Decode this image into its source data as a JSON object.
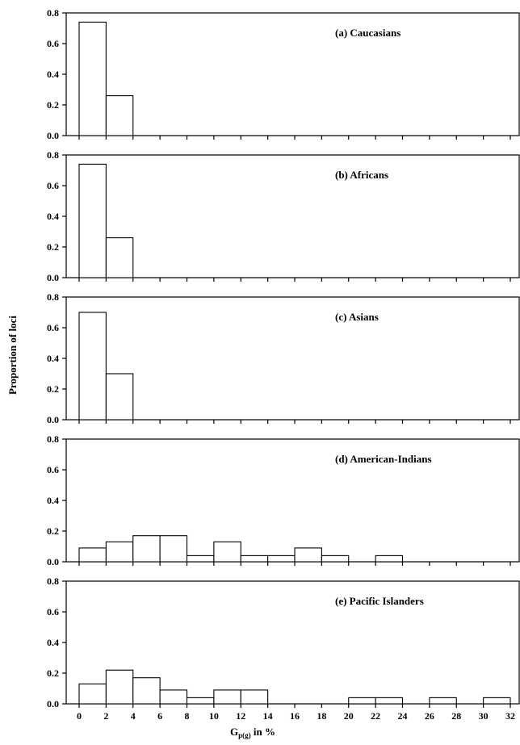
{
  "chart_data": {
    "type": "bar",
    "ylabel": "Proportion of loci",
    "xlabel": {
      "main": "G",
      "subscript": "p(g)",
      "suffix": " in %"
    },
    "bin_width": 2,
    "xlim": [
      0,
      32
    ],
    "ylim": [
      0,
      0.8
    ],
    "x_ticks": [
      0,
      2,
      4,
      6,
      8,
      10,
      12,
      14,
      16,
      18,
      20,
      22,
      24,
      26,
      28,
      30,
      32
    ],
    "y_ticks": [
      "0.0",
      "0.2",
      "0.4",
      "0.6",
      "0.8"
    ],
    "panels": [
      {
        "title": "(a) Caucasians",
        "bins": [
          {
            "x0": 0,
            "value": 0.74
          },
          {
            "x0": 2,
            "value": 0.26
          }
        ]
      },
      {
        "title": "(b) Africans",
        "bins": [
          {
            "x0": 0,
            "value": 0.74
          },
          {
            "x0": 2,
            "value": 0.26
          }
        ]
      },
      {
        "title": "(c) Asians",
        "bins": [
          {
            "x0": 0,
            "value": 0.7
          },
          {
            "x0": 2,
            "value": 0.3
          }
        ]
      },
      {
        "title": "(d) American-Indians",
        "bins": [
          {
            "x0": 0,
            "value": 0.09
          },
          {
            "x0": 2,
            "value": 0.13
          },
          {
            "x0": 4,
            "value": 0.17
          },
          {
            "x0": 6,
            "value": 0.17
          },
          {
            "x0": 8,
            "value": 0.04
          },
          {
            "x0": 10,
            "value": 0.13
          },
          {
            "x0": 12,
            "value": 0.04
          },
          {
            "x0": 14,
            "value": 0.04
          },
          {
            "x0": 16,
            "value": 0.09
          },
          {
            "x0": 18,
            "value": 0.04
          },
          {
            "x0": 22,
            "value": 0.04
          }
        ]
      },
      {
        "title": "(e) Pacific Islanders",
        "bins": [
          {
            "x0": 0,
            "value": 0.13
          },
          {
            "x0": 2,
            "value": 0.22
          },
          {
            "x0": 4,
            "value": 0.17
          },
          {
            "x0": 6,
            "value": 0.09
          },
          {
            "x0": 8,
            "value": 0.04
          },
          {
            "x0": 10,
            "value": 0.09
          },
          {
            "x0": 12,
            "value": 0.09
          },
          {
            "x0": 20,
            "value": 0.04
          },
          {
            "x0": 22,
            "value": 0.04
          },
          {
            "x0": 26,
            "value": 0.04
          },
          {
            "x0": 30,
            "value": 0.04
          }
        ]
      }
    ]
  }
}
